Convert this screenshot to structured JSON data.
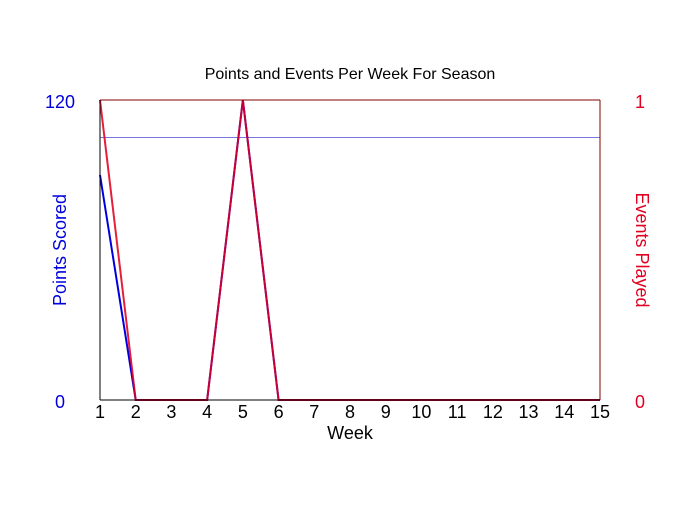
{
  "chart_data": {
    "type": "line",
    "title": "Points and Events Per Week For Season",
    "xlabel": "Week",
    "ylabel_left": "Points Scored",
    "ylabel_right": "Events Played",
    "x": [
      1,
      2,
      3,
      4,
      5,
      6,
      7,
      8,
      9,
      10,
      11,
      12,
      13,
      14,
      15
    ],
    "xlim": [
      1,
      15
    ],
    "ylim_left": [
      0,
      120
    ],
    "ylim_right": [
      0,
      1
    ],
    "left_ticks": [
      "0",
      "120"
    ],
    "right_ticks": [
      "0",
      "1"
    ],
    "series": [
      {
        "name": "Points Scored",
        "axis": "left",
        "color": "#0000dd",
        "values": [
          90,
          0,
          0,
          0,
          120,
          0,
          0,
          0,
          0,
          0,
          0,
          0,
          0,
          0,
          0
        ]
      },
      {
        "name": "Events Played",
        "axis": "right",
        "color": "#e00020",
        "values": [
          1,
          0,
          0,
          0,
          1,
          0,
          0,
          0,
          0,
          0,
          0,
          0,
          0,
          0,
          0
        ]
      }
    ],
    "reference_line": {
      "axis": "left",
      "value": 105,
      "color": "#7777dd"
    },
    "grid": false,
    "legend": "none"
  }
}
